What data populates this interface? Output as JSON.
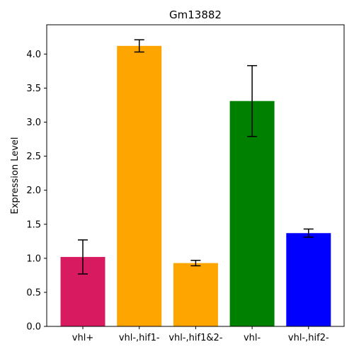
{
  "chart_data": {
    "type": "bar",
    "title": "Gm13882",
    "xlabel": "",
    "ylabel": "Expression Level",
    "categories": [
      "vhl+",
      "vhl-,hif1-",
      "vhl-,hif1&2-",
      "vhl-",
      "vhl-,hif2-"
    ],
    "values": [
      1.02,
      4.12,
      0.93,
      3.31,
      1.37
    ],
    "error_bars": [
      0.25,
      0.09,
      0.04,
      0.52,
      0.06
    ],
    "colors": [
      "#d81b60",
      "#ffa500",
      "#ffa500",
      "#008000",
      "#0000ff"
    ],
    "ylim": [
      0,
      4.43
    ],
    "yticks": [
      "0.0",
      "0.5",
      "1.0",
      "1.5",
      "2.0",
      "2.5",
      "3.0",
      "3.5",
      "4.0"
    ],
    "grid": false
  }
}
